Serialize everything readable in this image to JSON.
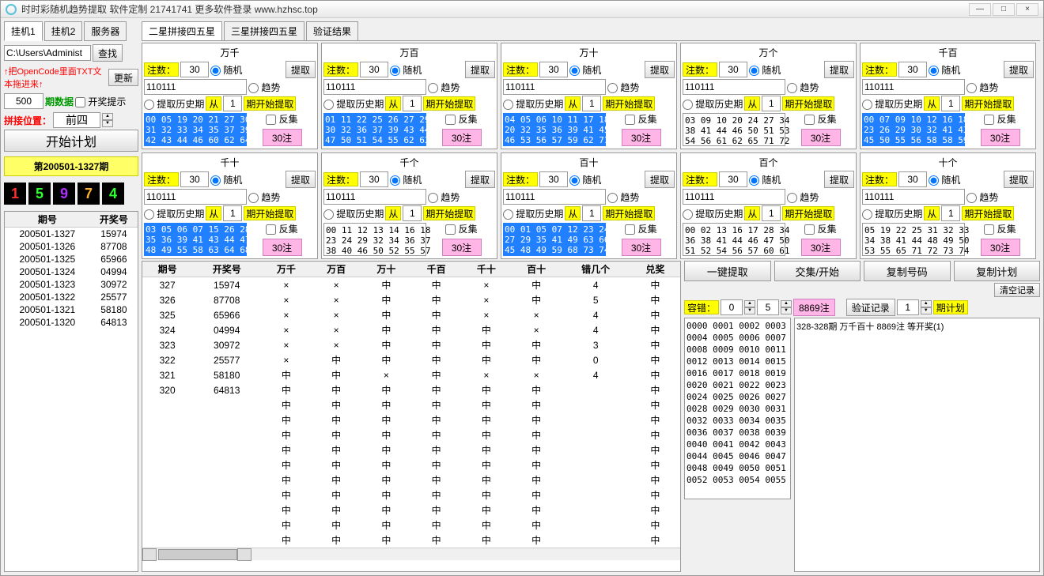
{
  "title": "时时彩随机趋势提取 软件定制 21741741 更多软件登录 www.hzhsc.top",
  "left": {
    "tabs": [
      "挂机1",
      "挂机2",
      "服务器"
    ],
    "path": "C:\\Users\\Administ",
    "find": "查找",
    "hint": "↑把OpenCode里面TXT文本拖进来↑",
    "update": "更新",
    "amount": "500",
    "dataLabel": "期数据",
    "prizeHint": "开奖提示",
    "posLabel": "拼接位置：",
    "posValue": "前四",
    "start": "开始计划",
    "periodBanner": "第200501-1327期",
    "digits": [
      {
        "v": "1",
        "c": "#ff3030"
      },
      {
        "v": "5",
        "c": "#30ff30"
      },
      {
        "v": "9",
        "c": "#b030ff"
      },
      {
        "v": "7",
        "c": "#ffb030"
      },
      {
        "v": "4",
        "c": "#30ff30"
      }
    ],
    "historyHead": [
      "期号",
      "开奖号"
    ],
    "history": [
      [
        "200501-1327",
        "15974"
      ],
      [
        "200501-1326",
        "87708"
      ],
      [
        "200501-1325",
        "65966"
      ],
      [
        "200501-1324",
        "04994"
      ],
      [
        "200501-1323",
        "30972"
      ],
      [
        "200501-1322",
        "25577"
      ],
      [
        "200501-1321",
        "58180"
      ],
      [
        "200501-1320",
        "64813"
      ]
    ]
  },
  "topTabs": [
    "二星拼接四五星",
    "三星拼接四五星",
    "验证结果"
  ],
  "panelLabels": {
    "count": "注数：",
    "random": "随机",
    "trend": "趋势",
    "extract": "提取",
    "histPeriod": "提取历史期",
    "from": "从",
    "startExtract": "期开始提取",
    "inverse": "反集",
    "bet30": "30注"
  },
  "panels": [
    {
      "title": "万千",
      "count": "30",
      "code": "110111",
      "from": "1",
      "blue": true,
      "nums": "00 05 19 20 21 27 30\n31 32 33 34 35 37 39\n42 43 44 46 60 62 64"
    },
    {
      "title": "万百",
      "count": "30",
      "code": "110111",
      "from": "1",
      "blue": true,
      "nums": "01 11 22 25 26 27 29\n30 32 36 37 39 43 44\n47 50 51 54 55 62 63"
    },
    {
      "title": "万十",
      "count": "30",
      "code": "110111",
      "from": "1",
      "blue": true,
      "nums": "04 05 06 10 11 17 18\n20 32 35 36 39 41 45\n46 53 56 57 59 62 71"
    },
    {
      "title": "万个",
      "count": "30",
      "code": "110111",
      "from": "1",
      "blue": false,
      "nums": "03 09 10 20 24 27 34\n38 41 44 46 50 51 53\n54 56 61 62 65 71 72"
    },
    {
      "title": "千百",
      "count": "30",
      "code": "110111",
      "from": "1",
      "blue": true,
      "nums": "00 07 09 10 12 16 18\n23 26 29 30 32 41 43\n45 50 55 56 58 58 59"
    },
    {
      "title": "千十",
      "count": "30",
      "code": "110111",
      "from": "1",
      "blue": true,
      "nums": "03 05 06 07 15 26 28\n35 36 39 41 43 44 47\n48 49 55 58 63 64 68"
    },
    {
      "title": "千个",
      "count": "30",
      "code": "110111",
      "from": "1",
      "blue": false,
      "nums": "00 11 12 13 14 16 18\n23 24 29 32 34 36 37\n38 40 46 50 52 55 57"
    },
    {
      "title": "百十",
      "count": "30",
      "code": "110111",
      "from": "1",
      "blue": true,
      "nums": "00 01 05 07 12 23 24\n27 29 35 41 49 63 66\n45 48 49 59 68 73 74"
    },
    {
      "title": "百个",
      "count": "30",
      "code": "110111",
      "from": "1",
      "blue": false,
      "nums": "00 02 13 16 17 28 34\n36 38 41 44 46 47 50\n51 52 54 56 57 60 61"
    },
    {
      "title": "十个",
      "count": "30",
      "code": "110111",
      "from": "1",
      "blue": false,
      "nums": "05 19 22 25 31 32 33\n34 38 41 44 48 49 50\n53 55 65 71 72 73 74"
    }
  ],
  "resultHead": [
    "期号",
    "开奖号",
    "万千",
    "万百",
    "万十",
    "千百",
    "千十",
    "百十",
    "错几个",
    "兑奖"
  ],
  "results": [
    [
      "327",
      "15974",
      "×",
      "×",
      "中",
      "中",
      "×",
      "中",
      "4",
      "中"
    ],
    [
      "326",
      "87708",
      "×",
      "×",
      "中",
      "中",
      "×",
      "中",
      "5",
      "中"
    ],
    [
      "325",
      "65966",
      "×",
      "×",
      "中",
      "中",
      "×",
      "×",
      "4",
      "中"
    ],
    [
      "324",
      "04994",
      "×",
      "×",
      "中",
      "中",
      "中",
      "×",
      "4",
      "中"
    ],
    [
      "323",
      "30972",
      "×",
      "×",
      "中",
      "中",
      "中",
      "中",
      "3",
      "中"
    ],
    [
      "322",
      "25577",
      "×",
      "中",
      "中",
      "中",
      "中",
      "中",
      "0",
      "中"
    ],
    [
      "321",
      "58180",
      "中",
      "中",
      "×",
      "中",
      "×",
      "×",
      "4",
      "中"
    ],
    [
      "320",
      "64813",
      "中",
      "中",
      "中",
      "中",
      "中",
      "中",
      "",
      "中"
    ],
    [
      "",
      "",
      "中",
      "中",
      "中",
      "中",
      "中",
      "中",
      "",
      "中"
    ],
    [
      "",
      "",
      "中",
      "中",
      "中",
      "中",
      "中",
      "中",
      "",
      "中"
    ],
    [
      "",
      "",
      "中",
      "中",
      "中",
      "中",
      "中",
      "中",
      "",
      "中"
    ],
    [
      "",
      "",
      "中",
      "中",
      "中",
      "中",
      "中",
      "中",
      "",
      "中"
    ],
    [
      "",
      "",
      "中",
      "中",
      "中",
      "中",
      "中",
      "中",
      "",
      "中"
    ],
    [
      "",
      "",
      "中",
      "中",
      "中",
      "中",
      "中",
      "中",
      "",
      "中"
    ],
    [
      "",
      "",
      "中",
      "中",
      "中",
      "中",
      "中",
      "中",
      "",
      "中"
    ],
    [
      "",
      "",
      "中",
      "中",
      "中",
      "中",
      "中",
      "中",
      "",
      "中"
    ],
    [
      "",
      "",
      "中",
      "中",
      "中",
      "中",
      "中",
      "中",
      "",
      "中"
    ],
    [
      "",
      "",
      "中",
      "中",
      "中",
      "中",
      "中",
      "中",
      "",
      "中"
    ]
  ],
  "rightBtns": [
    "一键提取",
    "交集/开始",
    "复制号码",
    "复制计划"
  ],
  "clearLog": "清空记录",
  "err": {
    "label": "容错：",
    "a": "0",
    "b": "5",
    "bet": "8869注",
    "verify": "验证记录",
    "vn": "1",
    "plan": "期计划"
  },
  "codes": "0000 0001 0002 0003\n0004 0005 0006 0007\n0008 0009 0010 0011\n0012 0013 0014 0015\n0016 0017 0018 0019\n0020 0021 0022 0023\n0024 0025 0026 0027\n0028 0029 0030 0031\n0032 0033 0034 0035\n0036 0037 0038 0039\n0040 0041 0042 0043\n0044 0045 0046 0047\n0048 0049 0050 0051\n0052 0053 0054 0055",
  "planText": "328-328期 万千百十 8869注  等开奖(1)"
}
